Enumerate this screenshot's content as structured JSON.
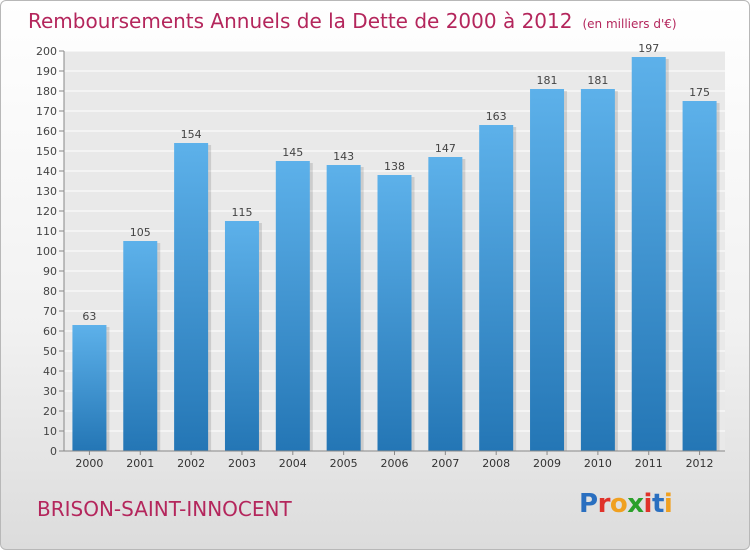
{
  "header": {
    "title": "Remboursements Annuels de la Dette de 2000 à 2012",
    "unit": "(en milliers d'€)"
  },
  "footer": {
    "commune": "BRISON-SAINT-INNOCENT",
    "logo_letters": [
      "P",
      "r",
      "o",
      "x",
      "i",
      "t",
      "i"
    ]
  },
  "colors": {
    "accent": "#b4265c",
    "bar_top": "#5db1ea",
    "bar_bottom": "#2476b5",
    "logo": [
      "#2a6fc0",
      "#e0322a",
      "#f0a020",
      "#2aa02a",
      "#e0322a",
      "#2a6fc0",
      "#f0a020"
    ]
  },
  "chart_data": {
    "type": "bar",
    "title": "Remboursements Annuels de la Dette de 2000 à 2012",
    "unit": "(en milliers d'€)",
    "categories": [
      "2000",
      "2001",
      "2002",
      "2003",
      "2004",
      "2005",
      "2006",
      "2007",
      "2008",
      "2009",
      "2010",
      "2011",
      "2012"
    ],
    "values": [
      63,
      105,
      154,
      115,
      145,
      143,
      138,
      147,
      163,
      181,
      181,
      197,
      175
    ],
    "ylim": [
      0,
      200
    ],
    "ytick_step": 10,
    "grid": true,
    "data_labels": true
  }
}
